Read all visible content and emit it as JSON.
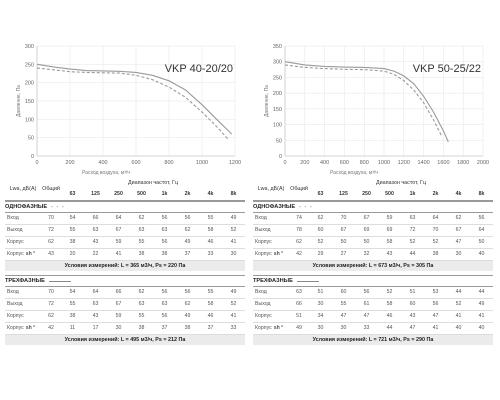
{
  "chart_data": [
    {
      "type": "line",
      "title": "VKP 40-20/20",
      "xlabel": "Расход воздуха, м³/ч",
      "ylabel": "Давление, Па",
      "xlim": [
        0,
        1200
      ],
      "ylim": [
        0,
        300
      ],
      "xticks": [
        0,
        200,
        400,
        600,
        800,
        1000,
        1200
      ],
      "yticks": [
        0,
        50,
        100,
        150,
        200,
        250,
        300
      ],
      "series": [
        {
          "style": "solid",
          "x": [
            0,
            100,
            200,
            300,
            400,
            500,
            600,
            700,
            800,
            900,
            1000,
            1100,
            1180
          ],
          "y": [
            250,
            243,
            237,
            233,
            232,
            231,
            228,
            220,
            205,
            180,
            140,
            95,
            60
          ]
        },
        {
          "style": "dashed",
          "x": [
            0,
            100,
            200,
            300,
            400,
            500,
            600,
            700,
            800,
            900,
            1000,
            1100,
            1160
          ],
          "y": [
            240,
            235,
            230,
            228,
            227,
            226,
            220,
            208,
            188,
            160,
            120,
            75,
            45
          ]
        }
      ]
    },
    {
      "type": "line",
      "title": "VKP 50-25/22",
      "xlabel": "Расход воздуха, м³/ч",
      "ylabel": "Давление, Па",
      "xlim": [
        0,
        2000
      ],
      "ylim": [
        0,
        350
      ],
      "xticks": [
        0,
        200,
        400,
        600,
        800,
        1000,
        1200,
        1400,
        1600,
        1800,
        2000
      ],
      "yticks": [
        0,
        50,
        100,
        150,
        200,
        250,
        300,
        350
      ],
      "series": [
        {
          "style": "solid",
          "x": [
            0,
            200,
            400,
            600,
            800,
            1000,
            1100,
            1200,
            1300,
            1400,
            1500,
            1600,
            1650
          ],
          "y": [
            300,
            290,
            285,
            283,
            282,
            278,
            270,
            255,
            230,
            190,
            140,
            80,
            45
          ]
        },
        {
          "style": "dashed",
          "x": [
            0,
            200,
            400,
            600,
            800,
            1000,
            1100,
            1200,
            1300,
            1400,
            1500,
            1580
          ],
          "y": [
            290,
            282,
            278,
            276,
            275,
            270,
            260,
            240,
            210,
            170,
            115,
            65
          ]
        }
      ]
    }
  ],
  "tables": [
    {
      "lwa_header": "Lwa, дБ(A)",
      "total_header": "Общий",
      "range_header": "Диапазон частот, Гц",
      "freqs": [
        "63",
        "125",
        "250",
        "500",
        "1k",
        "2k",
        "4k",
        "8k"
      ],
      "sections": [
        {
          "title": "ОДНОФАЗНЫЕ",
          "marker": "dashed",
          "rows": [
            {
              "label": "Вход",
              "total": "70",
              "vals": [
                "54",
                "66",
                "64",
                "62",
                "56",
                "56",
                "55",
                "49"
              ]
            },
            {
              "label": "Выход",
              "total": "72",
              "vals": [
                "55",
                "63",
                "67",
                "63",
                "63",
                "62",
                "58",
                "52"
              ]
            },
            {
              "label": "Корпус",
              "total": "62",
              "vals": [
                "38",
                "43",
                "59",
                "55",
                "56",
                "49",
                "46",
                "41"
              ]
            },
            {
              "label": "Корпус",
              "sup": "sh ²",
              "total": "43",
              "vals": [
                "20",
                "22",
                "41",
                "38",
                "38",
                "37",
                "33",
                "30"
              ]
            }
          ],
          "condition": "Условия измерений: L = 365 м3/ч, Ps = 220 Па"
        },
        {
          "title": "ТРЕХФАЗНЫЕ",
          "marker": "solid",
          "rows": [
            {
              "label": "Вход",
              "total": "70",
              "vals": [
                "54",
                "64",
                "66",
                "62",
                "56",
                "56",
                "55",
                "49"
              ]
            },
            {
              "label": "Выход",
              "total": "72",
              "vals": [
                "55",
                "63",
                "67",
                "63",
                "63",
                "62",
                "58",
                "52"
              ]
            },
            {
              "label": "Корпус",
              "total": "62",
              "vals": [
                "38",
                "43",
                "59",
                "55",
                "56",
                "49",
                "46",
                "41"
              ]
            },
            {
              "label": "Корпус",
              "sup": "sh ²",
              "total": "42",
              "vals": [
                "11",
                "17",
                "30",
                "38",
                "37",
                "38",
                "37",
                "33"
              ]
            }
          ],
          "condition": "Условия измерений: L = 495 м3/ч, Ps = 212 Па"
        }
      ]
    },
    {
      "lwa_header": "Lwa, дБ(A)",
      "total_header": "Общий",
      "range_header": "Диапазон частот, Гц",
      "freqs": [
        "63",
        "125",
        "250",
        "500",
        "1k",
        "2k",
        "4k",
        "8k"
      ],
      "sections": [
        {
          "title": "ОДНОФАЗНЫЕ",
          "marker": "dashed",
          "rows": [
            {
              "label": "Вход",
              "total": "74",
              "vals": [
                "62",
                "70",
                "67",
                "59",
                "63",
                "64",
                "62",
                "56"
              ]
            },
            {
              "label": "Выход",
              "total": "78",
              "vals": [
                "60",
                "67",
                "69",
                "69",
                "72",
                "70",
                "67",
                "64"
              ]
            },
            {
              "label": "Корпус",
              "total": "62",
              "vals": [
                "52",
                "50",
                "50",
                "58",
                "52",
                "52",
                "47",
                "50"
              ]
            },
            {
              "label": "Корпус",
              "sup": "sh ²",
              "total": "42",
              "vals": [
                "29",
                "27",
                "32",
                "43",
                "44",
                "38",
                "30",
                "40"
              ]
            }
          ],
          "condition": "Условия измерений: L = 673 м3/ч, Ps = 305 Па"
        },
        {
          "title": "ТРЕХФАЗНЫЕ",
          "marker": "solid",
          "rows": [
            {
              "label": "Вход",
              "total": "63",
              "vals": [
                "51",
                "60",
                "56",
                "52",
                "51",
                "53",
                "44",
                "44"
              ]
            },
            {
              "label": "Выход",
              "total": "66",
              "vals": [
                "30",
                "55",
                "61",
                "58",
                "60",
                "56",
                "52",
                "49"
              ]
            },
            {
              "label": "Корпус",
              "total": "51",
              "vals": [
                "34",
                "47",
                "47",
                "46",
                "43",
                "47",
                "41",
                "41"
              ]
            },
            {
              "label": "Корпус",
              "sup": "sh ²",
              "total": "49",
              "vals": [
                "30",
                "30",
                "33",
                "44",
                "47",
                "41",
                "40",
                "40"
              ]
            }
          ],
          "condition": "Условия измерений: L = 721 м3/ч, Ps = 290 Па"
        }
      ]
    }
  ],
  "colors": {
    "solid_curve": "#9a9a9a",
    "dashed_curve": "#9a9a9a",
    "grid": "#e4e4e4",
    "condition_bg": "#ebebeb"
  }
}
